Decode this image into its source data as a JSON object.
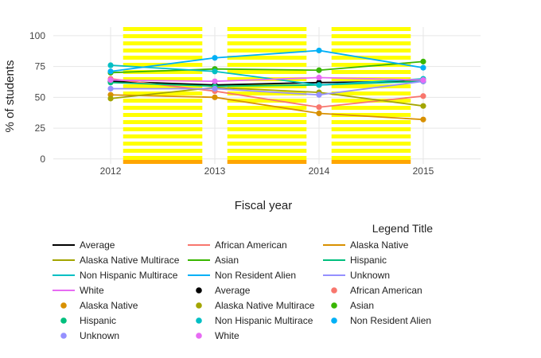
{
  "chart_data": {
    "type": "line",
    "xlabel": "Fiscal year",
    "ylabel": "% of students",
    "x": [
      2012,
      2013,
      2014,
      2015
    ],
    "xlim": [
      2011.45,
      2015.55
    ],
    "ylim": [
      -4,
      107
    ],
    "yticks": [
      0,
      25,
      50,
      75,
      100
    ],
    "grid": true,
    "legend_title": "Legend Title",
    "legend_position": "bottom",
    "shaded_bands": [
      [
        2012.12,
        2012.88
      ],
      [
        2013.12,
        2013.88
      ],
      [
        2014.12,
        2014.88
      ]
    ],
    "band_color": "#ffff00",
    "band_base_color": "#ffa500",
    "series": [
      {
        "name": "Average",
        "color": "#000000",
        "values": [
          63,
          60,
          62,
          63
        ]
      },
      {
        "name": "African American",
        "color": "#f8766d",
        "values": [
          65,
          55,
          42,
          51
        ]
      },
      {
        "name": "Alaska Native",
        "color": "#d89000",
        "values": [
          52,
          50,
          37,
          32
        ]
      },
      {
        "name": "Alaska Native Multirace",
        "color": "#a3a500",
        "values": [
          49,
          58,
          54,
          43
        ]
      },
      {
        "name": "Asian",
        "color": "#39b600",
        "values": [
          70,
          73,
          72,
          79
        ]
      },
      {
        "name": "Hispanic",
        "color": "#00bf7d",
        "values": [
          62,
          59,
          60,
          63
        ]
      },
      {
        "name": "Non Hispanic Multirace",
        "color": "#00bfc4",
        "values": [
          76,
          71,
          60,
          65
        ]
      },
      {
        "name": "Non Resident Alien",
        "color": "#00b0f6",
        "values": [
          71,
          82,
          88,
          74
        ]
      },
      {
        "name": "Unknown",
        "color": "#9590ff",
        "values": [
          57,
          57,
          52,
          63
        ]
      },
      {
        "name": "White",
        "color": "#e76bf3",
        "values": [
          64,
          63,
          66,
          64
        ]
      }
    ]
  },
  "legend": {
    "line_items": [
      "Average",
      "African American",
      "Alaska Native",
      "Alaska Native Multirace",
      "Asian",
      "Hispanic",
      "Non Hispanic Multirace",
      "Non Resident Alien",
      "Unknown",
      "White"
    ],
    "point_items": [
      "Average",
      "African American",
      "Alaska Native",
      "Alaska Native Multirace",
      "Asian",
      "Hispanic",
      "Non Hispanic Multirace",
      "Non Resident Alien",
      "Unknown",
      "White"
    ]
  }
}
